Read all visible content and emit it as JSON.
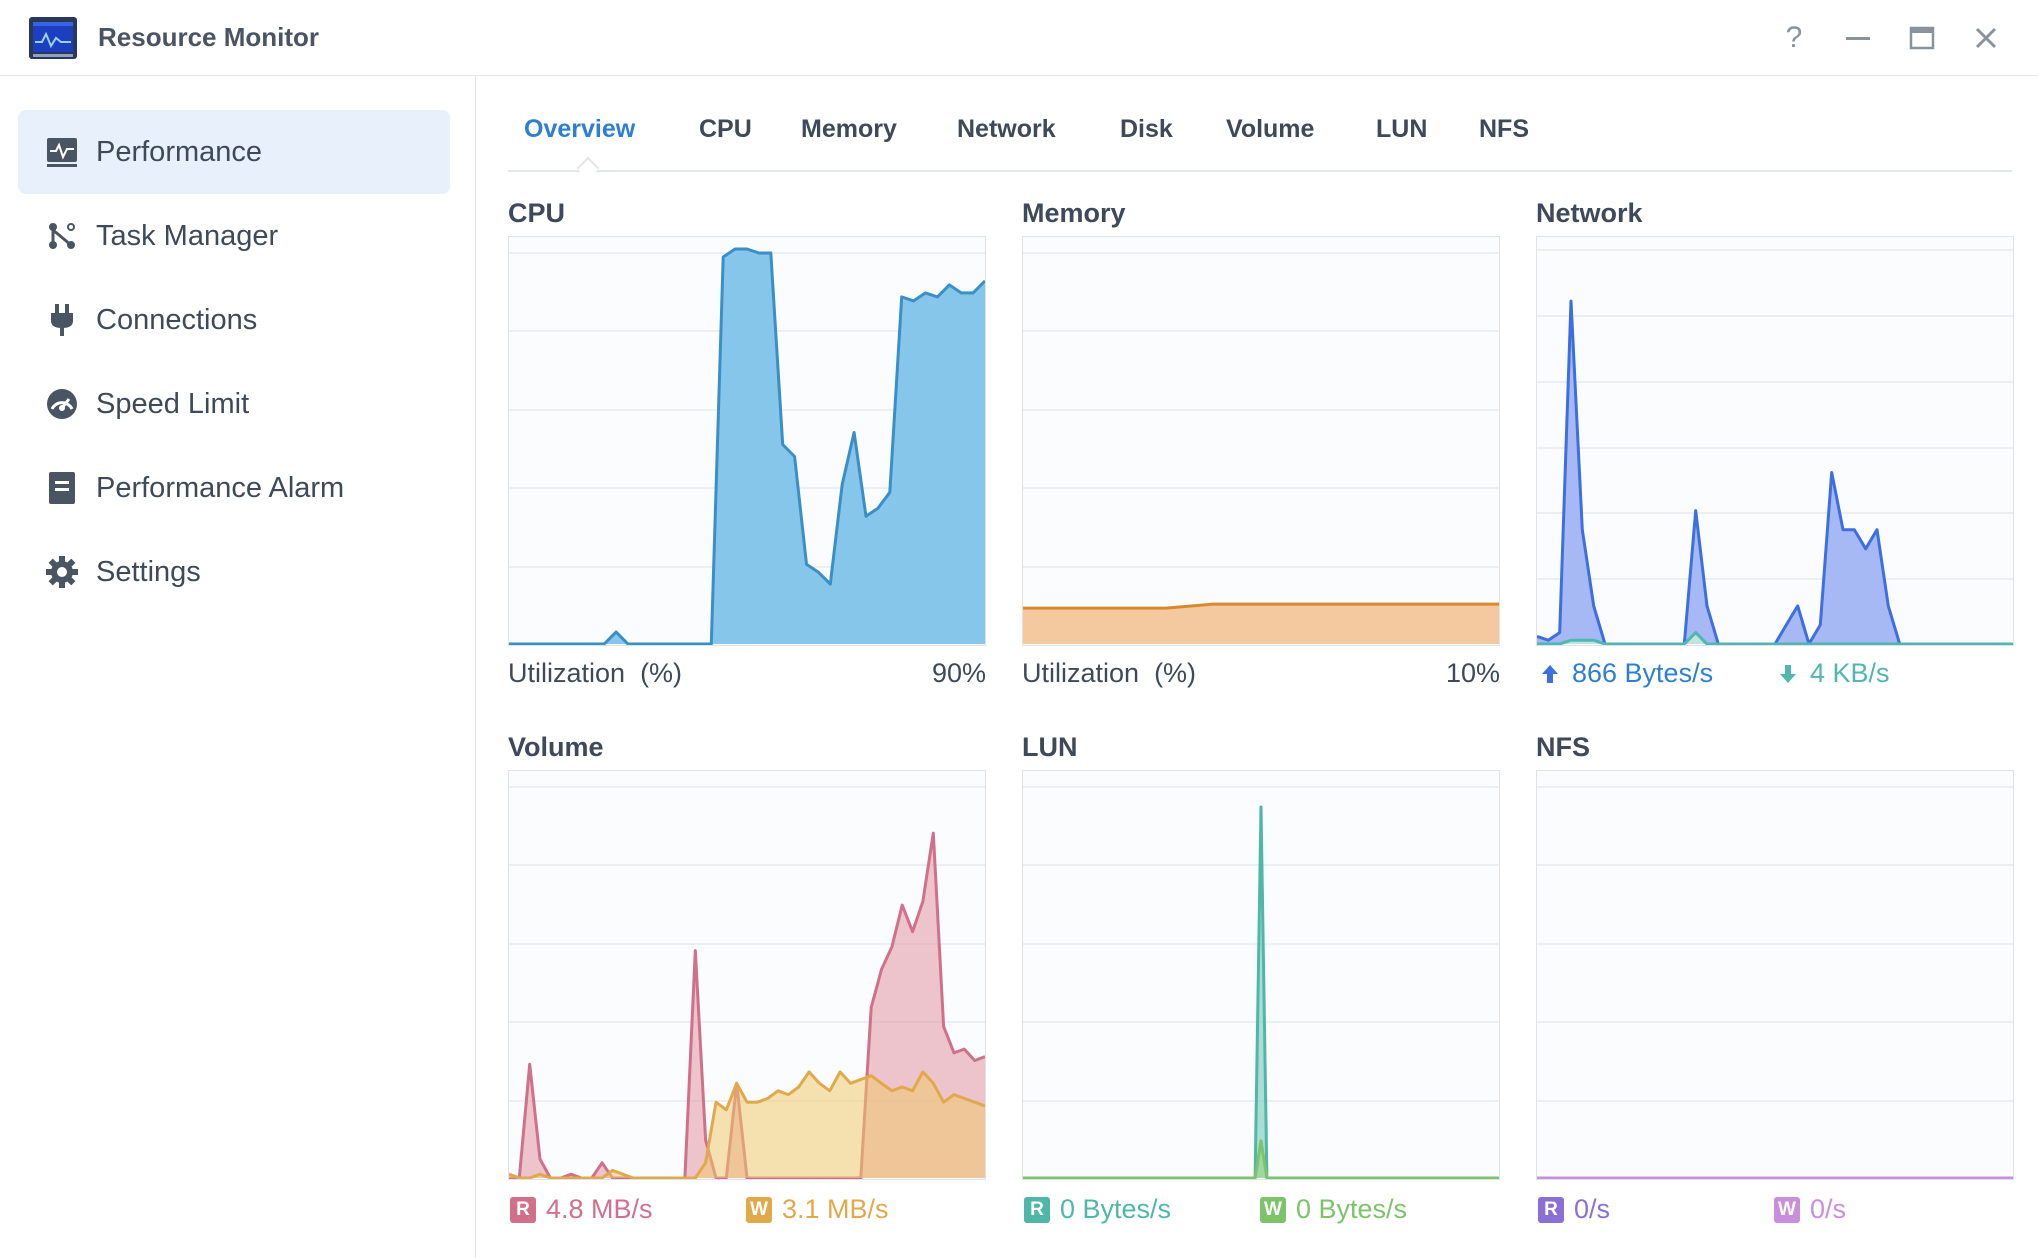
{
  "window": {
    "title": "Resource Monitor",
    "help_label": "?"
  },
  "sidebar": {
    "items": [
      {
        "label": "Performance",
        "icon": "performance-chart-icon",
        "active": true
      },
      {
        "label": "Task Manager",
        "icon": "task-manager-icon",
        "active": false
      },
      {
        "label": "Connections",
        "icon": "plug-icon",
        "active": false
      },
      {
        "label": "Speed Limit",
        "icon": "speedometer-icon",
        "active": false
      },
      {
        "label": "Performance Alarm",
        "icon": "alarm-clipboard-icon",
        "active": false
      },
      {
        "label": "Settings",
        "icon": "gear-icon",
        "active": false
      }
    ]
  },
  "tabs": [
    "Overview",
    "CPU",
    "Memory",
    "Network",
    "Disk",
    "Volume",
    "LUN",
    "NFS"
  ],
  "active_tab": "Overview",
  "colors": {
    "accent": "#2d7fd3",
    "cpu": "#3a8fc7",
    "memory": "#d98a2e",
    "network_up": "#3d6fe0",
    "network_down": "#4fb7b0",
    "volume_read": "#d0708a",
    "volume_write": "#e0a94a",
    "lun_read": "#4fb7a8",
    "lun_write": "#7cc36a",
    "nfs_read": "#8a70d6",
    "nfs_write": "#c98fdc"
  },
  "panels": {
    "cpu": {
      "title": "CPU",
      "label": "Utilization",
      "unit": "(%)",
      "value": "90%"
    },
    "memory": {
      "title": "Memory",
      "label": "Utilization",
      "unit": "(%)",
      "value": "10%"
    },
    "network": {
      "title": "Network",
      "upload": "866 Bytes/s",
      "download": "4 KB/s"
    },
    "volume": {
      "title": "Volume",
      "read_badge": "R",
      "read": "4.8 MB/s",
      "write_badge": "W",
      "write": "3.1 MB/s"
    },
    "lun": {
      "title": "LUN",
      "read_badge": "R",
      "read": "0 Bytes/s",
      "write_badge": "W",
      "write": "0 Bytes/s"
    },
    "nfs": {
      "title": "NFS",
      "read_badge": "R",
      "read": "0/s",
      "write_badge": "W",
      "write": "0/s"
    }
  },
  "chart_data": [
    {
      "type": "area",
      "title": "CPU",
      "ylim": [
        0,
        100
      ],
      "x": [
        0,
        1,
        2,
        3,
        4,
        5,
        6,
        7,
        8,
        9,
        10,
        11,
        12,
        13,
        14,
        15,
        16,
        17,
        18,
        19,
        20,
        21,
        22,
        23,
        24,
        25,
        26,
        27,
        28,
        29,
        30,
        31,
        32,
        33,
        34,
        35,
        36,
        37,
        38,
        39,
        40
      ],
      "series": [
        {
          "values": [
            0,
            0,
            0,
            0,
            0,
            0,
            0,
            0,
            0,
            3,
            0,
            0,
            0,
            0,
            0,
            0,
            0,
            0,
            97,
            99,
            99,
            98,
            98,
            50,
            47,
            20,
            18,
            15,
            40,
            53,
            32,
            34,
            38,
            87,
            86,
            88,
            87,
            90,
            88,
            88,
            91
          ]
        }
      ]
    },
    {
      "type": "area",
      "title": "Memory",
      "ylim": [
        0,
        100
      ],
      "x": [
        0,
        1,
        2,
        3,
        4,
        5,
        6,
        7,
        8,
        9,
        10
      ],
      "series": [
        {
          "values": [
            9,
            9,
            9,
            9,
            10,
            10,
            10,
            10,
            10,
            10,
            10
          ]
        }
      ]
    },
    {
      "type": "area",
      "title": "Network",
      "series": [
        {
          "name": "Upload",
          "values": [
            2,
            1,
            3,
            90,
            30,
            10,
            0,
            0,
            0,
            0,
            0,
            0,
            0,
            0,
            35,
            10,
            0,
            0,
            0,
            0,
            0,
            0,
            5,
            10,
            0,
            5,
            45,
            30,
            30,
            25,
            30,
            10,
            0,
            0,
            0,
            0,
            0,
            0,
            0,
            0,
            0,
            0,
            0
          ]
        },
        {
          "name": "Download",
          "values": [
            0,
            0,
            0,
            1,
            1,
            1,
            0,
            0,
            0,
            0,
            0,
            0,
            0,
            0,
            3,
            0,
            0,
            0,
            0,
            0,
            0,
            0,
            0,
            0,
            0,
            0,
            0,
            0,
            0,
            0,
            0,
            0,
            0,
            0,
            0,
            0,
            0,
            0,
            0,
            0,
            0,
            0,
            0
          ]
        }
      ]
    },
    {
      "type": "area",
      "title": "Volume",
      "series": [
        {
          "name": "R",
          "values": [
            0,
            0,
            30,
            5,
            0,
            0,
            1,
            0,
            0,
            4,
            0,
            0,
            0,
            0,
            0,
            0,
            0,
            0,
            60,
            10,
            0,
            0,
            25,
            0,
            0,
            0,
            0,
            0,
            0,
            0,
            0,
            0,
            0,
            0,
            0,
            45,
            55,
            61,
            72,
            65,
            73,
            91,
            40,
            33,
            34,
            31,
            32
          ]
        },
        {
          "name": "W",
          "values": [
            1,
            0,
            0,
            1,
            0,
            0,
            0,
            0,
            0,
            0,
            2,
            1,
            0,
            0,
            0,
            0,
            0,
            0,
            0,
            4,
            20,
            18,
            25,
            20,
            20,
            21,
            23,
            22,
            24,
            28,
            25,
            23,
            28,
            25,
            26,
            27,
            25,
            23,
            24,
            23,
            28,
            25,
            20,
            22,
            21,
            20,
            19
          ]
        }
      ]
    },
    {
      "type": "area",
      "title": "LUN",
      "series": [
        {
          "name": "R",
          "values": [
            0,
            0,
            0,
            0,
            0,
            0,
            0,
            0,
            0,
            0,
            0,
            0,
            0,
            0,
            0,
            0,
            0,
            0,
            0,
            0,
            0,
            0,
            0,
            0,
            0,
            0,
            0,
            0,
            0,
            0,
            0,
            0,
            0,
            0,
            0,
            0,
            0,
            0,
            0,
            0,
            100,
            0,
            0,
            0,
            0,
            0,
            0,
            0,
            0,
            0,
            0,
            0,
            0,
            0,
            0,
            0,
            0,
            0,
            0,
            0,
            0,
            0,
            0,
            0,
            0,
            0,
            0,
            0,
            0,
            0,
            0,
            0,
            0,
            0,
            0,
            0,
            0,
            0,
            0,
            0,
            0
          ]
        },
        {
          "name": "W",
          "values": [
            0,
            0,
            0,
            0,
            0,
            0,
            0,
            0,
            0,
            0,
            0,
            0,
            0,
            0,
            0,
            0,
            0,
            0,
            0,
            0,
            0,
            0,
            0,
            0,
            0,
            0,
            0,
            0,
            0,
            0,
            0,
            0,
            0,
            0,
            0,
            0,
            0,
            0,
            0,
            0,
            10,
            0,
            0,
            0,
            0,
            0,
            0,
            0,
            0,
            0,
            0,
            0,
            0,
            0,
            0,
            0,
            0,
            0,
            0,
            0,
            0,
            0,
            0,
            0,
            0,
            0,
            0,
            0,
            0,
            0,
            0,
            0,
            0,
            0,
            0,
            0,
            0,
            0,
            0,
            0,
            0
          ]
        }
      ]
    },
    {
      "type": "area",
      "title": "NFS",
      "series": [
        {
          "name": "R",
          "values": [
            0,
            0,
            0,
            0,
            0,
            0,
            0,
            0,
            0,
            0
          ]
        },
        {
          "name": "W",
          "values": [
            0,
            0,
            0,
            0,
            0,
            0,
            0,
            0,
            0,
            0
          ]
        }
      ]
    }
  ]
}
